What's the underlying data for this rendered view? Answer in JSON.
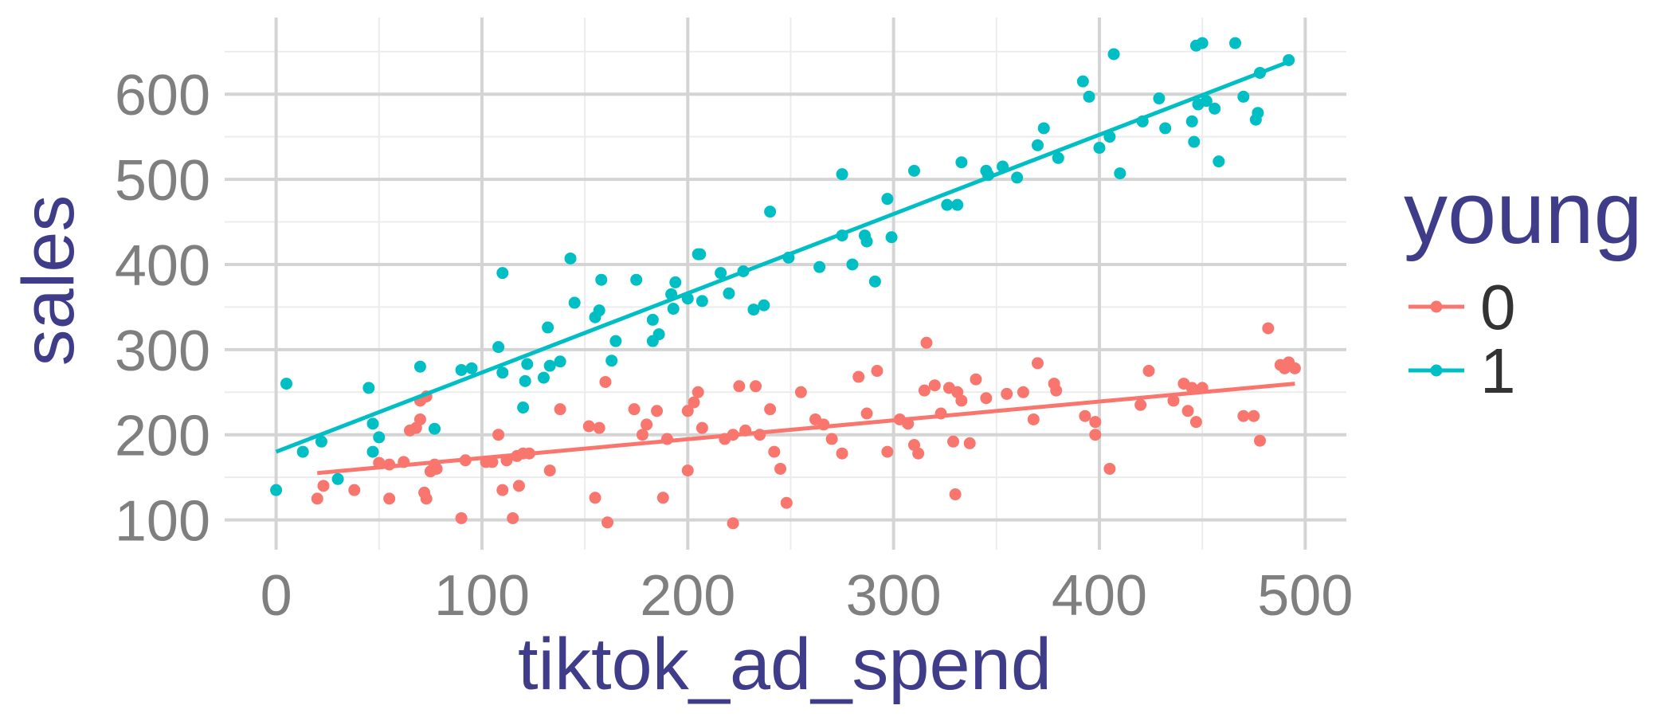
{
  "chart_data": {
    "type": "scatter",
    "title": "",
    "xlabel": "tiktok_ad_spend",
    "ylabel": "sales",
    "xlim": [
      -25,
      520
    ],
    "ylim": [
      65,
      690
    ],
    "x_ticks": [
      0,
      100,
      200,
      300,
      400,
      500
    ],
    "y_ticks": [
      100,
      200,
      300,
      400,
      500,
      600
    ],
    "grid": true,
    "legend": {
      "title": "young",
      "placement": "right",
      "entries": [
        "0",
        "1"
      ]
    },
    "colors": {
      "0": "#f8766d",
      "1": "#00bfc4"
    },
    "series": [
      {
        "name": "0",
        "color": "#f8766d",
        "fit": {
          "x": [
            20,
            495
          ],
          "y": [
            155,
            260
          ]
        },
        "points": [
          [
            20,
            125
          ],
          [
            23,
            140
          ],
          [
            38,
            135
          ],
          [
            50,
            167
          ],
          [
            55,
            125
          ],
          [
            55,
            165
          ],
          [
            62,
            168
          ],
          [
            65,
            205
          ],
          [
            68,
            208
          ],
          [
            70,
            240
          ],
          [
            70,
            218
          ],
          [
            72,
            132
          ],
          [
            73,
            245
          ],
          [
            73,
            125
          ],
          [
            75,
            157
          ],
          [
            77,
            165
          ],
          [
            78,
            160
          ],
          [
            90,
            102
          ],
          [
            92,
            170
          ],
          [
            102,
            168
          ],
          [
            105,
            168
          ],
          [
            108,
            200
          ],
          [
            110,
            135
          ],
          [
            112,
            170
          ],
          [
            115,
            102
          ],
          [
            117,
            175
          ],
          [
            118,
            140
          ],
          [
            120,
            178
          ],
          [
            123,
            178
          ],
          [
            133,
            158
          ],
          [
            138,
            230
          ],
          [
            152,
            210
          ],
          [
            155,
            126
          ],
          [
            157,
            208
          ],
          [
            160,
            262
          ],
          [
            161,
            97
          ],
          [
            174,
            230
          ],
          [
            178,
            200
          ],
          [
            180,
            212
          ],
          [
            185,
            228
          ],
          [
            188,
            126
          ],
          [
            190,
            195
          ],
          [
            200,
            158
          ],
          [
            200,
            228
          ],
          [
            203,
            238
          ],
          [
            205,
            250
          ],
          [
            207,
            208
          ],
          [
            218,
            195
          ],
          [
            222,
            200
          ],
          [
            222,
            96
          ],
          [
            225,
            257
          ],
          [
            228,
            205
          ],
          [
            233,
            257
          ],
          [
            235,
            200
          ],
          [
            240,
            230
          ],
          [
            242,
            180
          ],
          [
            245,
            160
          ],
          [
            248,
            120
          ],
          [
            255,
            250
          ],
          [
            262,
            218
          ],
          [
            266,
            212
          ],
          [
            270,
            195
          ],
          [
            275,
            178
          ],
          [
            283,
            268
          ],
          [
            287,
            225
          ],
          [
            292,
            275
          ],
          [
            297,
            180
          ],
          [
            303,
            218
          ],
          [
            307,
            213
          ],
          [
            310,
            188
          ],
          [
            312,
            178
          ],
          [
            315,
            252
          ],
          [
            316,
            308
          ],
          [
            320,
            258
          ],
          [
            323,
            225
          ],
          [
            327,
            255
          ],
          [
            329,
            192
          ],
          [
            330,
            130
          ],
          [
            331,
            250
          ],
          [
            333,
            240
          ],
          [
            337,
            190
          ],
          [
            340,
            265
          ],
          [
            345,
            243
          ],
          [
            355,
            248
          ],
          [
            363,
            250
          ],
          [
            368,
            218
          ],
          [
            370,
            284
          ],
          [
            378,
            260
          ],
          [
            379,
            252
          ],
          [
            393,
            222
          ],
          [
            398,
            200
          ],
          [
            398,
            215
          ],
          [
            405,
            160
          ],
          [
            420,
            235
          ],
          [
            424,
            275
          ],
          [
            436,
            240
          ],
          [
            441,
            260
          ],
          [
            443,
            228
          ],
          [
            445,
            255
          ],
          [
            447,
            215
          ],
          [
            450,
            255
          ],
          [
            470,
            222
          ],
          [
            475,
            222
          ],
          [
            478,
            193
          ],
          [
            482,
            325
          ],
          [
            488,
            282
          ],
          [
            490,
            278
          ],
          [
            492,
            285
          ],
          [
            495,
            278
          ]
        ]
      },
      {
        "name": "1",
        "color": "#00bfc4",
        "fit": {
          "x": [
            0,
            492
          ],
          "y": [
            180,
            638
          ]
        },
        "points": [
          [
            0,
            135
          ],
          [
            5,
            260
          ],
          [
            13,
            180
          ],
          [
            22,
            192
          ],
          [
            30,
            148
          ],
          [
            45,
            255
          ],
          [
            47,
            213
          ],
          [
            47,
            180
          ],
          [
            50,
            197
          ],
          [
            70,
            280
          ],
          [
            77,
            207
          ],
          [
            90,
            276
          ],
          [
            95,
            278
          ],
          [
            108,
            303
          ],
          [
            110,
            390
          ],
          [
            110,
            273
          ],
          [
            120,
            232
          ],
          [
            121,
            263
          ],
          [
            122,
            283
          ],
          [
            130,
            267
          ],
          [
            132,
            326
          ],
          [
            133,
            281
          ],
          [
            138,
            286
          ],
          [
            143,
            407
          ],
          [
            145,
            355
          ],
          [
            155,
            338
          ],
          [
            157,
            346
          ],
          [
            158,
            382
          ],
          [
            163,
            287
          ],
          [
            165,
            310
          ],
          [
            175,
            382
          ],
          [
            183,
            335
          ],
          [
            183,
            310
          ],
          [
            186,
            318
          ],
          [
            192,
            365
          ],
          [
            193,
            348
          ],
          [
            194,
            379
          ],
          [
            200,
            360
          ],
          [
            205,
            412
          ],
          [
            206,
            412
          ],
          [
            207,
            357
          ],
          [
            216,
            390
          ],
          [
            220,
            366
          ],
          [
            227,
            392
          ],
          [
            232,
            347
          ],
          [
            237,
            352
          ],
          [
            240,
            462
          ],
          [
            249,
            408
          ],
          [
            264,
            397
          ],
          [
            275,
            506
          ],
          [
            275,
            434
          ],
          [
            280,
            400
          ],
          [
            286,
            434
          ],
          [
            287,
            427
          ],
          [
            291,
            380
          ],
          [
            297,
            477
          ],
          [
            299,
            432
          ],
          [
            310,
            510
          ],
          [
            326,
            470
          ],
          [
            331,
            470
          ],
          [
            333,
            520
          ],
          [
            345,
            510
          ],
          [
            346,
            505
          ],
          [
            353,
            515
          ],
          [
            360,
            502
          ],
          [
            373,
            560
          ],
          [
            370,
            540
          ],
          [
            380,
            525
          ],
          [
            392,
            615
          ],
          [
            395,
            597
          ],
          [
            400,
            537
          ],
          [
            405,
            550
          ],
          [
            407,
            647
          ],
          [
            410,
            507
          ],
          [
            421,
            568
          ],
          [
            429,
            595
          ],
          [
            432,
            560
          ],
          [
            445,
            568
          ],
          [
            446,
            544
          ],
          [
            447,
            657
          ],
          [
            448,
            588
          ],
          [
            450,
            660
          ],
          [
            452,
            592
          ],
          [
            456,
            583
          ],
          [
            458,
            521
          ],
          [
            466,
            660
          ],
          [
            470,
            597
          ],
          [
            476,
            570
          ],
          [
            477,
            578
          ],
          [
            478,
            625
          ],
          [
            492,
            640
          ]
        ]
      }
    ]
  }
}
